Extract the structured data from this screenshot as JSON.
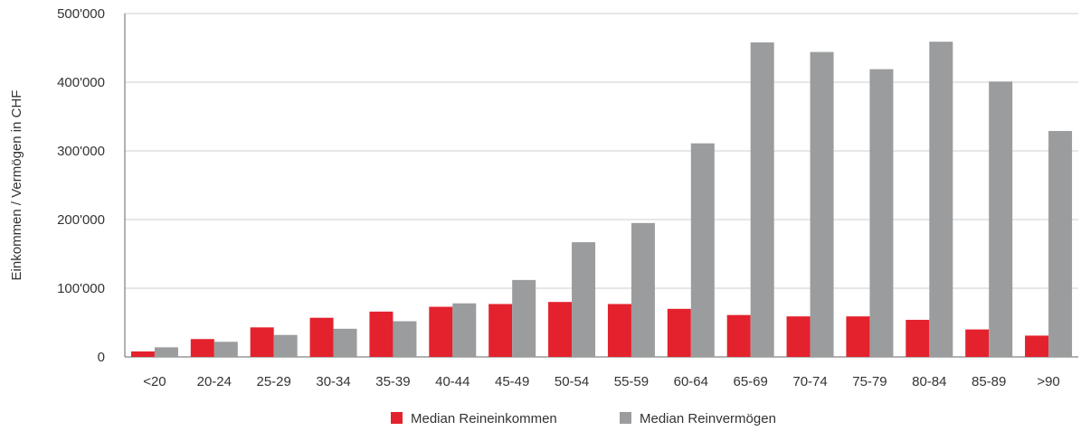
{
  "chart_data": {
    "type": "bar",
    "title": "",
    "xlabel": "",
    "ylabel": "Einkommen / Vermögen in CHF",
    "ylim": [
      0,
      500000
    ],
    "yticks": [
      "0",
      "100'000",
      "200'000",
      "300'000",
      "400'000",
      "500'000"
    ],
    "ytick_values": [
      0,
      100000,
      200000,
      300000,
      400000,
      500000
    ],
    "grid": true,
    "legend_position": "bottom",
    "categories": [
      "<20",
      "20-24",
      "25-29",
      "30-34",
      "35-39",
      "40-44",
      "45-49",
      "50-54",
      "55-59",
      "60-64",
      "65-69",
      "70-74",
      "75-79",
      "80-84",
      "85-89",
      ">90"
    ],
    "series": [
      {
        "name": "Median Reineinkommen",
        "color": "#e3222d",
        "values": [
          8000,
          26000,
          43000,
          57000,
          66000,
          73000,
          77000,
          80000,
          77000,
          70000,
          61000,
          59000,
          59000,
          54000,
          40000,
          31000
        ]
      },
      {
        "name": "Median Reinvermögen",
        "color": "#9b9c9e",
        "values": [
          14000,
          22000,
          32000,
          41000,
          52000,
          78000,
          112000,
          167000,
          195000,
          311000,
          458000,
          444000,
          419000,
          459000,
          401000,
          329000
        ]
      }
    ]
  }
}
